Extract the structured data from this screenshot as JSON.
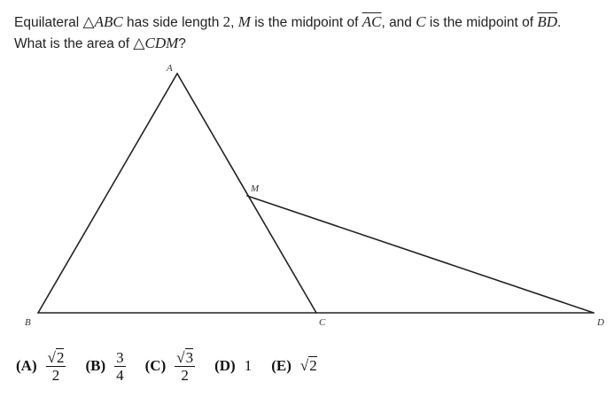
{
  "problem": {
    "t1": "Equilateral ",
    "tri1": "△",
    "abc": "ABC",
    "t2": " has side length ",
    "two": "2",
    "t3": ", ",
    "m": "M",
    "t4": " is the midpoint of ",
    "ac": "AC",
    "t5": ", and ",
    "c": "C",
    "t6": " is the midpoint of ",
    "bd": "BD",
    "t7": ".",
    "t8": "What is the area of ",
    "tri2": "△",
    "cdm": "CDM",
    "t9": "?"
  },
  "figure": {
    "labels": {
      "A": "A",
      "B": "B",
      "C": "C",
      "M": "M",
      "D": "D"
    },
    "stroke_color": "#222222"
  },
  "choices": [
    {
      "letter": "(A)",
      "sqrt_sign": "√",
      "radicand": "2",
      "denominator": "2"
    },
    {
      "letter": "(B)",
      "numerator": "3",
      "denominator": "4"
    },
    {
      "letter": "(C)",
      "sqrt_sign": "√",
      "radicand": "3",
      "denominator": "2"
    },
    {
      "letter": "(D)",
      "value": "1"
    },
    {
      "letter": "(E)",
      "sqrt_sign": "√",
      "radicand": "2"
    }
  ]
}
